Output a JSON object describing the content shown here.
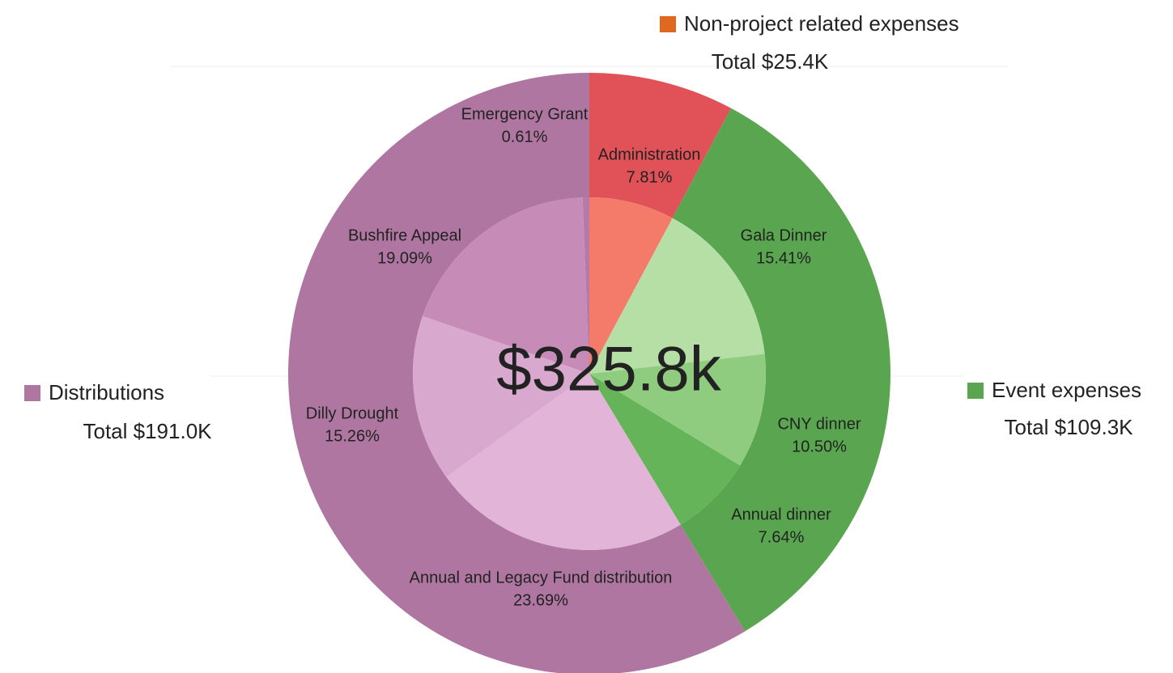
{
  "chart_data": {
    "type": "sunburst",
    "center_text": "$325.8k",
    "groups": [
      {
        "name": "Non-project related expenses",
        "value": 25.4,
        "value_label": "Total $25.4K",
        "color": "#e05257",
        "children": [
          {
            "name": "Administration",
            "value": 7.81,
            "value_label": "7.81%",
            "color": "#f47a6a"
          }
        ]
      },
      {
        "name": "Event expenses",
        "value": 109.3,
        "value_label": "Total $109.3K",
        "color": "#5aa54f",
        "children": [
          {
            "name": "Gala Dinner",
            "value": 15.41,
            "value_label": "15.41%",
            "color": "#b6dfa6"
          },
          {
            "name": "CNY dinner",
            "value": 10.5,
            "value_label": "10.50%",
            "color": "#8fcc7f"
          },
          {
            "name": "Annual dinner",
            "value": 7.64,
            "value_label": "7.64%",
            "color": "#66b45a"
          }
        ]
      },
      {
        "name": "Distributions",
        "value": 191.0,
        "value_label": "Total $191.0K",
        "color": "#ae76a0",
        "children": [
          {
            "name": "Annual and Legacy Fund distribution",
            "value": 23.69,
            "value_label": "23.69%",
            "color": "#e2b4d7"
          },
          {
            "name": "Dilly Drought",
            "value": 15.26,
            "value_label": "15.26%",
            "color": "#d8a8cf"
          },
          {
            "name": "Bushfire Appeal",
            "value": 19.09,
            "value_label": "19.09%",
            "color": "#c78bb8"
          },
          {
            "name": "Emergency Grant",
            "value": 0.61,
            "value_label": "0.61%",
            "color": "#b57aa8"
          }
        ]
      }
    ]
  }
}
